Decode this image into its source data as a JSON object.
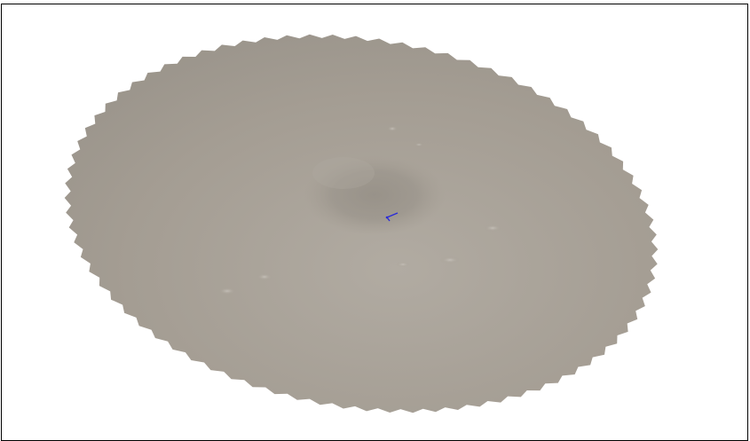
{
  "scene": {
    "kind": "3d-terrain-viewport",
    "surface_color": "#a49d93",
    "surface_shadow_color": "#9a948b",
    "surface_highlight_color": "#b1aba2",
    "background_color": "#ffffff",
    "border_color": "#000000",
    "marker_color": "#2a2bd8",
    "marker_icon": "axis-marker-icon"
  }
}
